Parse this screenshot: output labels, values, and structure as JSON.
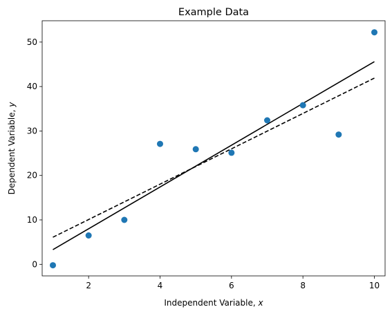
{
  "chart_data": {
    "type": "scatter",
    "title": "Example Data",
    "xlabel": "Independent Variable, ",
    "xlabel_var": "x",
    "ylabel": "Dependent Variable, ",
    "ylabel_var": "y",
    "xlim": [
      0.7,
      10.3
    ],
    "ylim": [
      -2.6,
      54.8
    ],
    "xticks": [
      2,
      4,
      6,
      8,
      10
    ],
    "yticks": [
      0,
      10,
      20,
      30,
      40,
      50
    ],
    "grid": false,
    "series": [
      {
        "kind": "points",
        "color": "#1f77b4",
        "x": [
          1,
          2,
          3,
          4,
          5,
          6,
          7,
          8,
          9,
          10
        ],
        "y": [
          -0.2,
          6.5,
          10.0,
          27.1,
          25.9,
          25.1,
          32.4,
          35.8,
          29.2,
          52.2
        ]
      },
      {
        "kind": "line",
        "style": "solid",
        "color": "#000000",
        "x": [
          1,
          10
        ],
        "y": [
          3.3,
          45.6
        ]
      },
      {
        "kind": "line",
        "style": "dashed",
        "color": "#000000",
        "x": [
          1,
          10
        ],
        "y": [
          6.1,
          41.9
        ]
      }
    ]
  }
}
